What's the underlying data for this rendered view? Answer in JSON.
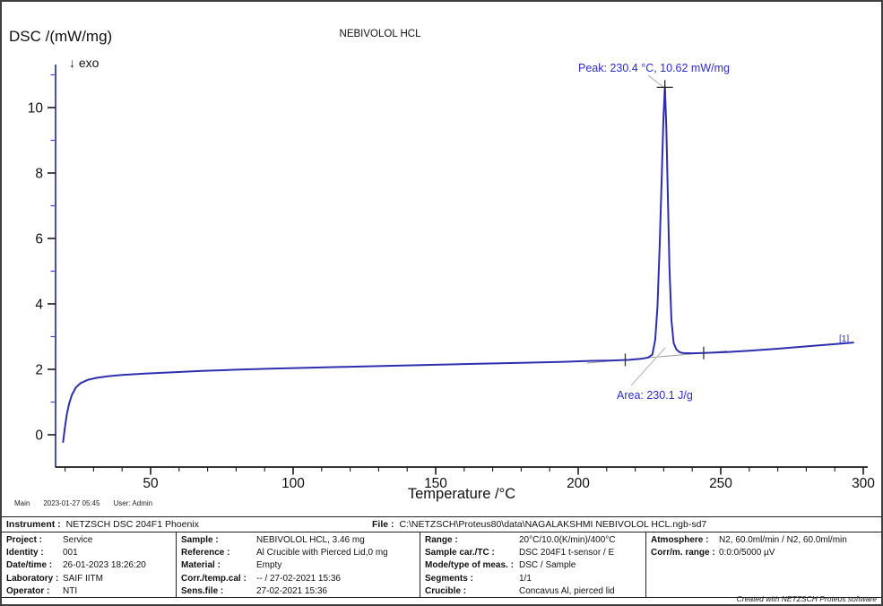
{
  "chart_data": {
    "type": "line",
    "title": "NEBIVOLOL HCL",
    "xlabel": "Temperature /°C",
    "ylabel": "DSC /(mW/mg)",
    "exo_label": "↓ exo",
    "curve_label": "[1]",
    "xlim": [
      16.5,
      305
    ],
    "ylim": [
      -1,
      11.3
    ],
    "x_major_ticks": [
      50,
      100,
      150,
      200,
      250,
      300
    ],
    "x_minor_step": 10,
    "y_major_ticks": [
      0,
      2,
      4,
      6,
      8,
      10
    ],
    "y_minor_step": 1,
    "grid": false,
    "series": [
      {
        "name": "DSC [1]",
        "color": "#2d2fae",
        "points": [
          [
            19.3,
            -0.22
          ],
          [
            19.9,
            0.2
          ],
          [
            20.6,
            0.62
          ],
          [
            21.4,
            0.95
          ],
          [
            22.4,
            1.22
          ],
          [
            23.8,
            1.45
          ],
          [
            25.5,
            1.58
          ],
          [
            28,
            1.68
          ],
          [
            31,
            1.74
          ],
          [
            35,
            1.79
          ],
          [
            40,
            1.83
          ],
          [
            48,
            1.87
          ],
          [
            58,
            1.91
          ],
          [
            68,
            1.95
          ],
          [
            80,
            1.99
          ],
          [
            92,
            2.02
          ],
          [
            105,
            2.05
          ],
          [
            120,
            2.08
          ],
          [
            135,
            2.11
          ],
          [
            150,
            2.14
          ],
          [
            165,
            2.17
          ],
          [
            180,
            2.2
          ],
          [
            195,
            2.23
          ],
          [
            205,
            2.26
          ],
          [
            212,
            2.27
          ],
          [
            218,
            2.29
          ],
          [
            222,
            2.32
          ],
          [
            224.5,
            2.36
          ],
          [
            226,
            2.45
          ],
          [
            227,
            2.9
          ],
          [
            227.8,
            3.9
          ],
          [
            228.6,
            5.8
          ],
          [
            229.3,
            7.9
          ],
          [
            229.9,
            9.7
          ],
          [
            230.4,
            10.62
          ],
          [
            230.9,
            9.4
          ],
          [
            231.4,
            7.4
          ],
          [
            232,
            5.1
          ],
          [
            232.7,
            3.5
          ],
          [
            233.5,
            2.8
          ],
          [
            234.5,
            2.6
          ],
          [
            235.5,
            2.53
          ],
          [
            236.5,
            2.5
          ],
          [
            240,
            2.49
          ],
          [
            244,
            2.5
          ],
          [
            252,
            2.53
          ],
          [
            260,
            2.57
          ],
          [
            270,
            2.63
          ],
          [
            280,
            2.7
          ],
          [
            290,
            2.77
          ],
          [
            296.5,
            2.82
          ]
        ]
      }
    ],
    "peak_marker": {
      "temperature_c": 230.4,
      "value_mw_mg": 10.62
    },
    "baseline_markers": [
      [
        216.5,
        2.29
      ],
      [
        244,
        2.5
      ]
    ],
    "annotations": {
      "peak": "Peak: 230.4 °C, 10.62 mW/mg",
      "area": "Area: 230.1 J/g"
    },
    "area_j_g": 230.1
  },
  "status_bar": {
    "view": "Main",
    "datetime": "2023-01-27 05:45",
    "user": "User: Admin"
  },
  "info_table": {
    "header": {
      "instrument_label": "Instrument :",
      "instrument_value": "NETZSCH DSC 204F1 Phoenix",
      "file_label": "File :",
      "file_value": "C:\\NETZSCH\\Proteus80\\data\\NAGALAKSHMI NEBIVOLOL HCL.ngb-sd7"
    },
    "columns": [
      {
        "rows": [
          {
            "label": "Project :",
            "value": "Service"
          },
          {
            "label": "Identity :",
            "value": "001"
          },
          {
            "label": "Date/time :",
            "value": "26-01-2023 18:26:20"
          },
          {
            "label": "Laboratory :",
            "value": "SAIF IITM"
          },
          {
            "label": "Operator :",
            "value": "NTI"
          }
        ]
      },
      {
        "rows": [
          {
            "label": "Sample :",
            "value": "NEBIVOLOL HCL, 3.46 mg"
          },
          {
            "label": "Reference :",
            "value": "Al Crucible with Pierced Lid,0 mg"
          },
          {
            "label": "Material :",
            "value": "Empty"
          },
          {
            "label": "Corr./temp.cal :",
            "value": "-- / 27-02-2021 15:36"
          },
          {
            "label": "Sens.file :",
            "value": "27-02-2021 15:36"
          }
        ]
      },
      {
        "rows": [
          {
            "label": "Range :",
            "value": "20°C/10.0(K/min)/400°C"
          },
          {
            "label": "Sample car./TC :",
            "value": "DSC 204F1 t-sensor / E"
          },
          {
            "label": "Mode/type of meas. :",
            "value": "DSC / Sample"
          },
          {
            "label": "Segments :",
            "value": "1/1"
          },
          {
            "label": "Crucible :",
            "value": "Concavus Al, pierced lid"
          }
        ]
      },
      {
        "rows": [
          {
            "label": "Atmosphere :",
            "value": "N2, 60.0ml/min / N2, 60.0ml/min"
          },
          {
            "label": "Corr/m. range :",
            "value": "0:0:0/5000 µV"
          }
        ]
      }
    ]
  },
  "footer": {
    "credit": "Created with NETZSCH Proteus software"
  },
  "colors": {
    "curve": "#2d2fae",
    "annotation_text": "#2b2bd0",
    "axis_x": "#1a1a1a",
    "axis_y": "#3b3bb0",
    "leader_line": "#b9b9c4",
    "sight_line": "#9a9aa8"
  }
}
